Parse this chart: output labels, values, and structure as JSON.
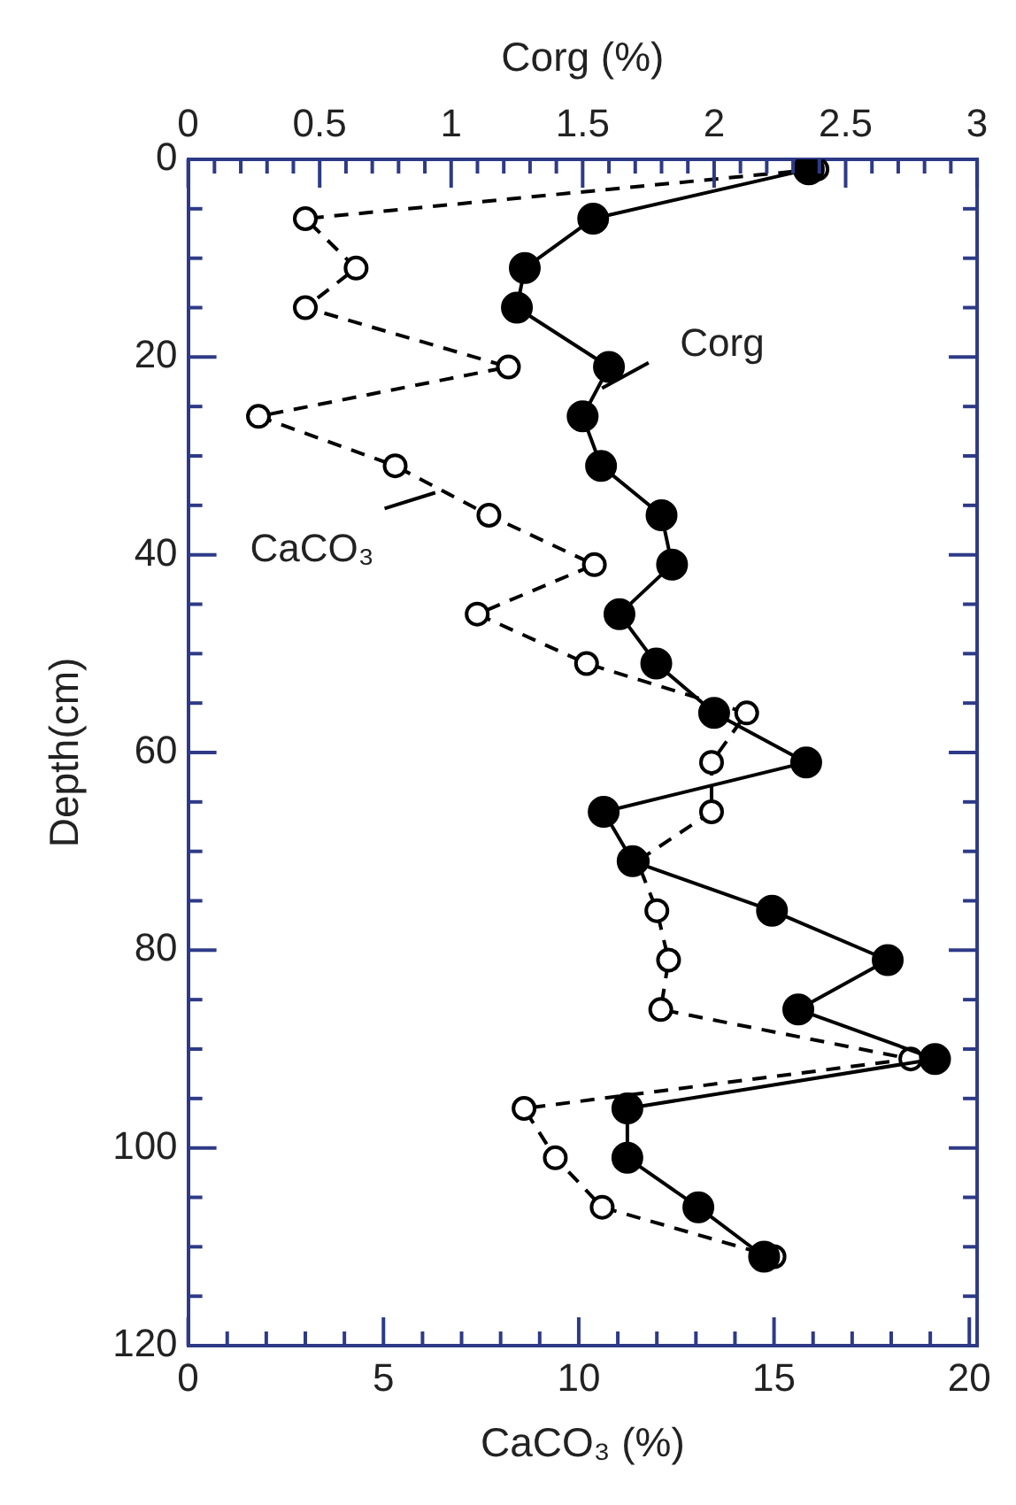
{
  "chart_data": {
    "type": "line",
    "xlabel": "CaCO₃ (%)",
    "x2label": "Corg (%)",
    "ylabel": "Depth(cm)",
    "xlim": [
      0,
      20.2
    ],
    "x2lim": [
      0,
      3
    ],
    "ylim": [
      120,
      0
    ],
    "xticks": [
      0,
      {
        "value": 1,
        "label": null
      },
      {
        "value": 2,
        "label": null
      },
      {
        "value": 3,
        "label": null
      },
      {
        "value": 4,
        "label": null
      },
      5,
      {
        "value": 6,
        "label": null
      },
      {
        "value": 7,
        "label": null
      },
      {
        "value": 8,
        "label": null
      },
      {
        "value": 9,
        "label": null
      },
      10,
      {
        "value": 11,
        "label": null
      },
      {
        "value": 12,
        "label": null
      },
      {
        "value": 13,
        "label": null
      },
      {
        "value": 14,
        "label": null
      },
      15,
      {
        "value": 16,
        "label": null
      },
      {
        "value": 17,
        "label": null
      },
      {
        "value": 18,
        "label": null
      },
      {
        "value": 19,
        "label": null
      },
      20
    ],
    "x2ticks": [
      0,
      {
        "value": 0.1,
        "label": null
      },
      {
        "value": 0.2,
        "label": null
      },
      {
        "value": 0.3,
        "label": null
      },
      {
        "value": 0.4,
        "label": null
      },
      0.5,
      {
        "value": 0.6,
        "label": null
      },
      {
        "value": 0.7,
        "label": null
      },
      {
        "value": 0.8,
        "label": null
      },
      {
        "value": 0.9,
        "label": null
      },
      1,
      {
        "value": 1.1,
        "label": null
      },
      {
        "value": 1.2,
        "label": null
      },
      {
        "value": 1.3,
        "label": null
      },
      {
        "value": 1.4,
        "label": null
      },
      1.5,
      {
        "value": 1.6,
        "label": null
      },
      {
        "value": 1.7,
        "label": null
      },
      {
        "value": 1.8,
        "label": null
      },
      {
        "value": 1.9,
        "label": null
      },
      2,
      {
        "value": 2.1,
        "label": null
      },
      {
        "value": 2.2,
        "label": null
      },
      {
        "value": 2.3,
        "label": null
      },
      {
        "value": 2.4,
        "label": null
      },
      2.5,
      {
        "value": 2.6,
        "label": null
      },
      {
        "value": 2.7,
        "label": null
      },
      {
        "value": 2.8,
        "label": null
      },
      {
        "value": 2.9,
        "label": null
      },
      3
    ],
    "yticks": [
      0,
      {
        "value": 5,
        "label": null
      },
      {
        "value": 10,
        "label": null
      },
      {
        "value": 15,
        "label": null
      },
      20,
      {
        "value": 25,
        "label": null
      },
      {
        "value": 30,
        "label": null
      },
      {
        "value": 35,
        "label": null
      },
      40,
      {
        "value": 45,
        "label": null
      },
      {
        "value": 50,
        "label": null
      },
      {
        "value": 55,
        "label": null
      },
      60,
      {
        "value": 65,
        "label": null
      },
      {
        "value": 70,
        "label": null
      },
      {
        "value": 75,
        "label": null
      },
      80,
      {
        "value": 85,
        "label": null
      },
      {
        "value": 90,
        "label": null
      },
      {
        "value": 95,
        "label": null
      },
      100,
      {
        "value": 105,
        "label": null
      },
      {
        "value": 110,
        "label": null
      },
      {
        "value": 115,
        "label": null
      },
      120
    ],
    "grid": false,
    "legend": false,
    "marker": "circle",
    "series": [
      {
        "name": "Corg",
        "color": "#000000",
        "axis": "x2",
        "line_style": "solid",
        "x": [
          2.36,
          1.54,
          1.28,
          1.25,
          1.6,
          1.5,
          1.57,
          1.8,
          1.84,
          1.64,
          1.78,
          2.0,
          2.35,
          1.58,
          1.69,
          2.22,
          2.66,
          2.32,
          2.84,
          1.67,
          1.67,
          1.94,
          2.19
        ],
        "values": [
          1,
          6,
          11,
          15,
          21,
          26,
          31,
          36,
          41,
          46,
          51,
          56,
          61,
          66,
          71,
          76,
          81,
          86,
          91,
          96,
          101,
          106,
          111
        ]
      },
      {
        "name": "CaCO₃",
        "color": "#000000",
        "line_style": "dashed",
        "x": [
          16.1,
          3.0,
          4.3,
          3.0,
          8.2,
          1.8,
          5.3,
          7.7,
          10.4,
          7.4,
          10.2,
          14.3,
          13.4,
          13.4,
          11.5,
          12.0,
          12.3,
          12.1,
          18.5,
          8.6,
          9.4,
          10.6,
          15.0
        ],
        "values": [
          1,
          6,
          11,
          15,
          21,
          26,
          31,
          36,
          41,
          46,
          51,
          56,
          61,
          66,
          71,
          76,
          81,
          86,
          91,
          96,
          101,
          106,
          111
        ]
      }
    ]
  }
}
